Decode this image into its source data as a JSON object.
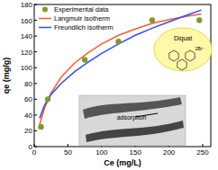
{
  "chart_data": {
    "type": "scatter",
    "x_label": "Ce (mg/L)",
    "y_label": "qe (mg/g)",
    "xlim": [
      0,
      262
    ],
    "ylim": [
      0,
      180
    ],
    "xticks": [
      0,
      50,
      100,
      150,
      200,
      250
    ],
    "yticks": [
      0,
      20,
      40,
      60,
      80,
      100,
      120,
      140,
      160,
      180
    ],
    "legend": "top-left",
    "annotations": [
      {
        "text": "Diquat"
      },
      {
        "text": "2Br⁻"
      },
      {
        "text": "adsorption"
      }
    ],
    "series": [
      {
        "name": "Experimental data",
        "type": "scatter",
        "marker": "circle",
        "color": "#7e9a2c",
        "x": [
          10,
          20,
          75,
          125,
          175,
          245
        ],
        "values": [
          25,
          60,
          110,
          133,
          160,
          160
        ]
      },
      {
        "name": "Langmuir isotherm",
        "type": "line",
        "line_style": "solid",
        "color": "#ff5a2a",
        "x": [
          8,
          15,
          25,
          40,
          60,
          80,
          100,
          125,
          150,
          175,
          200,
          225,
          248
        ],
        "values": [
          28,
          48,
          68,
          88,
          106,
          119,
          130,
          141,
          149,
          156,
          161,
          165,
          168
        ]
      },
      {
        "name": "Freundlich isotherm",
        "type": "line",
        "line_style": "solid",
        "color": "#2f4cff",
        "x": [
          8,
          15,
          25,
          40,
          60,
          80,
          100,
          125,
          150,
          175,
          200,
          225,
          248
        ],
        "values": [
          36,
          52,
          66,
          80,
          95,
          107,
          118,
          130,
          141,
          150,
          158,
          166,
          173
        ]
      }
    ]
  }
}
